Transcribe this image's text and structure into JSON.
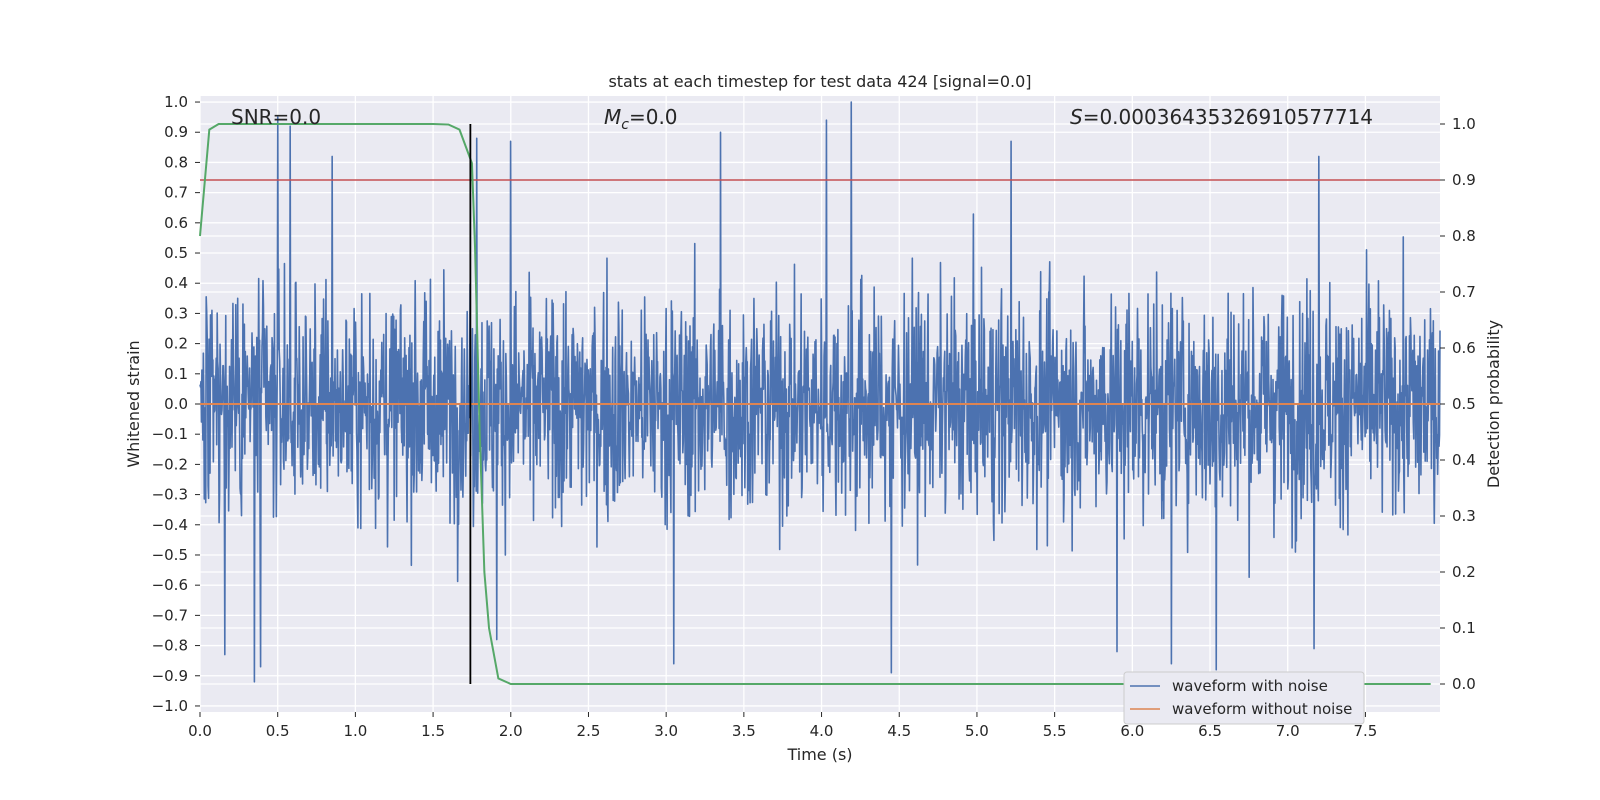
{
  "chart_data": {
    "type": "line",
    "title": "stats at each timestep for test data 424 [signal=0.0]",
    "xlabel": "Time (s)",
    "ylabel": "Whitened strain",
    "y2label": "Detection probability",
    "xlim": [
      0.0,
      7.98
    ],
    "ylim": [
      -1.02,
      1.02
    ],
    "y2lim": [
      -0.05,
      1.05
    ],
    "x_ticks": [
      0.0,
      0.5,
      1.0,
      1.5,
      2.0,
      2.5,
      3.0,
      3.5,
      4.0,
      4.5,
      5.0,
      5.5,
      6.0,
      6.5,
      7.0,
      7.5
    ],
    "x_tick_labels": [
      "0.0",
      "0.5",
      "1.0",
      "1.5",
      "2.0",
      "2.5",
      "3.0",
      "3.5",
      "4.0",
      "4.5",
      "5.0",
      "5.5",
      "6.0",
      "6.5",
      "7.0",
      "7.5"
    ],
    "y_ticks": [
      1.0,
      0.9,
      0.8,
      0.7,
      0.6,
      0.5,
      0.4,
      0.3,
      0.2,
      0.1,
      0.0,
      -0.1,
      -0.2,
      -0.3,
      -0.4,
      -0.5,
      -0.6,
      -0.7,
      -0.8,
      -0.9,
      -1.0
    ],
    "y_tick_labels": [
      "1.0",
      "0.9",
      "0.8",
      "0.7",
      "0.6",
      "0.5",
      "0.4",
      "0.3",
      "0.2",
      "0.1",
      "0.0",
      "−0.1",
      "−0.2",
      "−0.3",
      "−0.4",
      "−0.5",
      "−0.6",
      "−0.7",
      "−0.8",
      "−0.9",
      "−1.0"
    ],
    "y2_ticks": [
      1.0,
      0.9,
      0.8,
      0.7,
      0.6,
      0.5,
      0.4,
      0.3,
      0.2,
      0.1,
      0.0
    ],
    "y2_tick_labels": [
      "1.0",
      "0.9",
      "0.8",
      "0.7",
      "0.6",
      "0.5",
      "0.4",
      "0.3",
      "0.2",
      "0.1",
      "0.0"
    ],
    "grid": true,
    "annotations": {
      "snr": "SNR=0.0",
      "mc_symbol": "M",
      "mc_sub": "c",
      "mc_value": "=0.0",
      "s_symbol": "S",
      "s_value": "=0.00036435326910577714"
    },
    "series": [
      {
        "name": "waveform with noise",
        "color": "#4c72b0",
        "axis": "left",
        "description": "noise-like whitened strain, mostly within ±0.6 with spikes up to ~1.0 and down to ~-0.92",
        "envelope_upper": 0.6,
        "envelope_lower": -0.55,
        "peaks": [
          {
            "x": 0.5,
            "y": 0.95
          },
          {
            "x": 0.58,
            "y": 0.92
          },
          {
            "x": 0.85,
            "y": 0.82
          },
          {
            "x": 1.78,
            "y": 0.88
          },
          {
            "x": 2.0,
            "y": 0.87
          },
          {
            "x": 3.35,
            "y": 0.9
          },
          {
            "x": 4.03,
            "y": 0.94
          },
          {
            "x": 4.19,
            "y": 1.0
          },
          {
            "x": 5.22,
            "y": 0.87
          },
          {
            "x": 7.2,
            "y": 0.82
          },
          {
            "x": 0.35,
            "y": -0.92
          },
          {
            "x": 0.39,
            "y": -0.87
          },
          {
            "x": 0.16,
            "y": -0.83
          },
          {
            "x": 3.05,
            "y": -0.86
          },
          {
            "x": 4.45,
            "y": -0.89
          },
          {
            "x": 6.54,
            "y": -0.88
          },
          {
            "x": 6.25,
            "y": -0.86
          },
          {
            "x": 5.9,
            "y": -0.82
          },
          {
            "x": 7.17,
            "y": -0.81
          },
          {
            "x": 1.91,
            "y": -0.78
          }
        ]
      },
      {
        "name": "waveform without noise",
        "color": "#dd8452",
        "axis": "left",
        "x": [
          0.0,
          7.98
        ],
        "y": [
          0.0,
          0.0
        ]
      },
      {
        "name": "detection probability",
        "color": "#55a868",
        "axis": "right",
        "x": [
          0.0,
          0.06,
          0.12,
          0.5,
          1.0,
          1.5,
          1.6,
          1.67,
          1.71,
          1.75,
          1.77,
          1.8,
          1.83,
          1.86,
          1.92,
          2.0,
          7.92
        ],
        "y": [
          0.8,
          0.99,
          1.0,
          1.0,
          1.0,
          1.0,
          0.999,
          0.99,
          0.96,
          0.93,
          0.78,
          0.45,
          0.2,
          0.1,
          0.01,
          0.0,
          0.0
        ]
      }
    ],
    "threshold_line": {
      "color": "#c44e52",
      "axis": "right",
      "value": 0.9
    },
    "marker_line": {
      "color": "#000000",
      "x": 1.74,
      "y2_range": [
        0.0,
        1.0
      ]
    },
    "legend": {
      "placement": "lower-right",
      "entries": [
        {
          "label": "waveform with noise",
          "color": "#4c72b0"
        },
        {
          "label": "waveform without noise",
          "color": "#dd8452"
        }
      ]
    },
    "plot_background": "#eaeaf2"
  }
}
